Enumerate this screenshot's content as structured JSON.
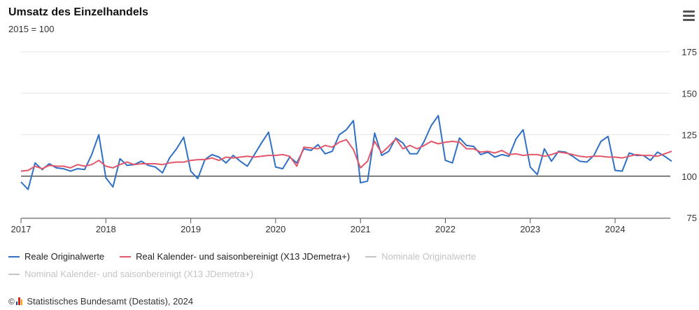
{
  "header": {
    "title": "Umsatz des Einzelhandels",
    "subtitle": "2015 = 100"
  },
  "icons": {
    "menu": "hamburger-menu-icon",
    "copyright": "copyright-icon",
    "logo": "destatis-logo-icon"
  },
  "credits": {
    "text": "Statistisches Bundesamt (Destatis), 2024",
    "copyright_symbol": "©"
  },
  "colors": {
    "series_blue": "#2f6fc4",
    "series_red": "#e2576b",
    "series_hidden": "#c4c4c4",
    "baseline": "#333333",
    "grid": "#e6e6e6",
    "logo": [
      "#0a4b8c",
      "#e2201c",
      "#f2a900"
    ]
  },
  "chart_data": {
    "type": "line",
    "title": "Umsatz des Einzelhandels",
    "subtitle": "2015 = 100",
    "x_start": "2017-01",
    "x_ticks": [
      "2017",
      "2018",
      "2019",
      "2020",
      "2021",
      "2022",
      "2023",
      "2024"
    ],
    "y_ticks": [
      75,
      100,
      125,
      150,
      175
    ],
    "ylim": [
      75,
      175
    ],
    "y_axis_side": "right",
    "reference_line": 100,
    "grid": true,
    "legend_position": "bottom-left",
    "series": [
      {
        "name": "Reale Originalwerte",
        "visible": true,
        "color": "#2f6fc4",
        "values": [
          96.5,
          92,
          108,
          104,
          107.5,
          105,
          104.5,
          103,
          104.5,
          104,
          113,
          125,
          99,
          93.5,
          110.5,
          106.5,
          107,
          109,
          106.5,
          105.5,
          102,
          111,
          116.5,
          123.5,
          103,
          98.5,
          110,
          113,
          111.5,
          108,
          112.5,
          109,
          106,
          113,
          120,
          126.5,
          105.5,
          104.5,
          111.5,
          108,
          116.5,
          115.5,
          119,
          113.5,
          115,
          125,
          128,
          133.5,
          96,
          97,
          126,
          112.5,
          115,
          123,
          120,
          113.5,
          113.5,
          121,
          130.5,
          136.5,
          109.5,
          108,
          123,
          118.5,
          118,
          113,
          114.5,
          111.5,
          113,
          112,
          122.5,
          128,
          105.5,
          101,
          116.5,
          109,
          115,
          114.5,
          112,
          109,
          108.5,
          112.5,
          121,
          124,
          103.5,
          103,
          114,
          112.5,
          112.5,
          109.5,
          114.5,
          112,
          109
        ]
      },
      {
        "name": "Real Kalender- und saisonbereinigt (X13 JDemetra+)",
        "visible": true,
        "color": "#e2576b",
        "values": [
          103,
          103.5,
          106,
          104.5,
          106.5,
          106,
          106,
          105,
          107,
          106,
          107,
          109.5,
          106,
          105,
          107,
          108.5,
          107,
          107.5,
          107.5,
          107.5,
          107,
          108,
          108.5,
          108.5,
          109.5,
          110,
          110,
          111,
          109.5,
          111.5,
          111,
          111.5,
          112,
          111.5,
          112,
          112.5,
          112.5,
          113,
          112,
          106,
          117.5,
          117,
          116.5,
          118.5,
          117.5,
          120.5,
          122,
          116,
          105,
          109,
          121,
          114,
          118,
          122.5,
          116.5,
          118.5,
          116.5,
          118.5,
          121,
          119.5,
          120.5,
          121,
          120.5,
          116.5,
          116.5,
          114.5,
          115,
          114,
          115.5,
          113,
          113.5,
          112.5,
          113,
          113,
          112,
          113,
          114.5,
          114,
          113,
          112,
          111.5,
          112,
          112,
          111.5,
          111.5,
          111,
          112,
          113,
          112.5,
          112.5,
          112,
          113.5,
          115
        ]
      },
      {
        "name": "Nominale Originalwerte",
        "visible": false,
        "color": "#c4c4c4",
        "values": []
      },
      {
        "name": "Nominal Kalender- und saisonbereinigt (X13 JDemetra+)",
        "visible": false,
        "color": "#c4c4c4",
        "values": []
      }
    ]
  }
}
